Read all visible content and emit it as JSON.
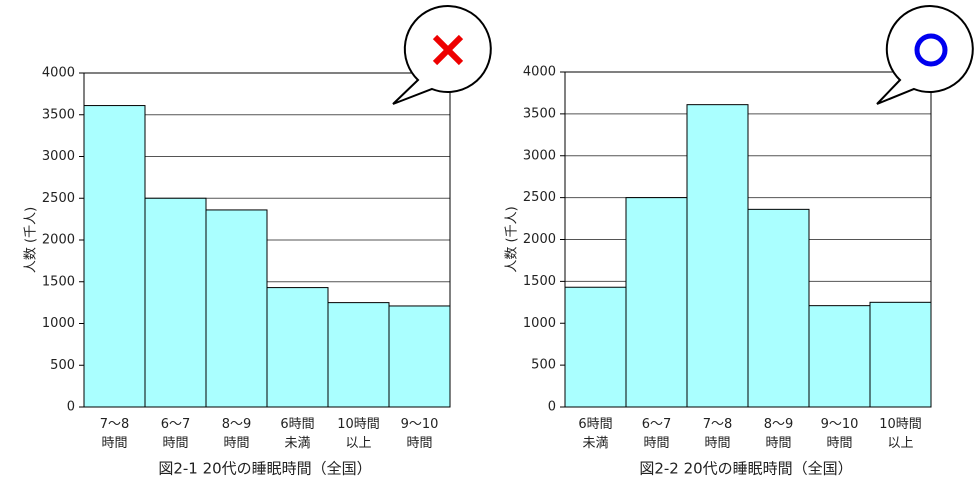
{
  "chart_data": [
    {
      "type": "bar",
      "title": "図2-1 20代の睡眠時間（全国）",
      "y_label": "人数 (千人)",
      "categories": [
        [
          "7～8",
          "時間"
        ],
        [
          "6～7",
          "時間"
        ],
        [
          "8～9",
          "時間"
        ],
        [
          "6時間",
          "未満"
        ],
        [
          "10時間",
          "以上"
        ],
        [
          "9～10",
          "時間"
        ]
      ],
      "values": [
        3610,
        2500,
        2360,
        1430,
        1250,
        1210
      ],
      "color": "#aaffff",
      "ylim": [
        0,
        4000
      ],
      "yticks": [
        0,
        500,
        1000,
        1500,
        2000,
        2500,
        3000,
        3500,
        4000
      ],
      "grid": true
    },
    {
      "type": "bar",
      "title": "図2-2 20代の睡眠時間（全国）",
      "y_label": "人数 (千人)",
      "categories": [
        [
          "6時間",
          "未満"
        ],
        [
          "6～7",
          "時間"
        ],
        [
          "7～8",
          "時間"
        ],
        [
          "8～9",
          "時間"
        ],
        [
          "9～10",
          "時間"
        ],
        [
          "10時間",
          "以上"
        ]
      ],
      "values": [
        1430,
        2500,
        3610,
        2360,
        1210,
        1250
      ],
      "color": "#aaffff",
      "ylim": [
        0,
        4000
      ],
      "yticks": [
        0,
        500,
        1000,
        1500,
        2000,
        2500,
        3000,
        3500,
        4000
      ],
      "grid": true
    }
  ]
}
